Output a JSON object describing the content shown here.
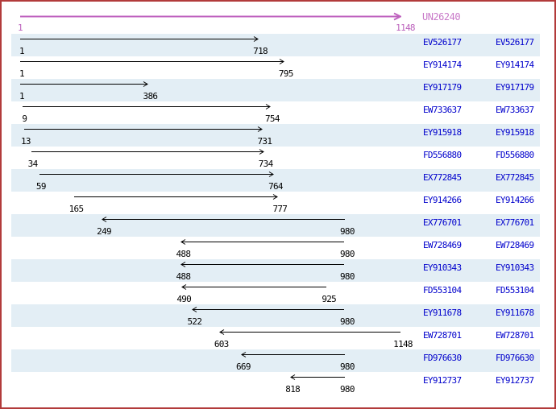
{
  "chart_data": {
    "type": "alignment-track",
    "title": "UN26240",
    "axis": {
      "min": 1,
      "max": 1148,
      "grid": false
    },
    "reference": {
      "id": "UN26240",
      "start": 1,
      "end": 1148,
      "start_label": "1",
      "end_label": "1148",
      "direction": "right"
    },
    "alignments": [
      {
        "id": "EV526177",
        "start": 1,
        "end": 718,
        "start_label": "1",
        "end_label": "718",
        "direction": "right"
      },
      {
        "id": "EY914174",
        "start": 1,
        "end": 795,
        "start_label": "1",
        "end_label": "795",
        "direction": "right"
      },
      {
        "id": "EY917179",
        "start": 1,
        "end": 386,
        "start_label": "1",
        "end_label": "386",
        "direction": "right"
      },
      {
        "id": "EW733637",
        "start": 9,
        "end": 754,
        "start_label": "9",
        "end_label": "754",
        "direction": "right"
      },
      {
        "id": "EY915918",
        "start": 13,
        "end": 731,
        "start_label": "13",
        "end_label": "731",
        "direction": "right"
      },
      {
        "id": "FD556880",
        "start": 34,
        "end": 734,
        "start_label": "34",
        "end_label": "734",
        "direction": "right"
      },
      {
        "id": "EX772845",
        "start": 59,
        "end": 764,
        "start_label": "59",
        "end_label": "764",
        "direction": "right"
      },
      {
        "id": "EY914266",
        "start": 165,
        "end": 777,
        "start_label": "165",
        "end_label": "777",
        "direction": "right"
      },
      {
        "id": "EX776701",
        "start": 249,
        "end": 980,
        "start_label": "249",
        "end_label": "980",
        "direction": "left"
      },
      {
        "id": "EW728469",
        "start": 488,
        "end": 980,
        "start_label": "488",
        "end_label": "980",
        "direction": "left"
      },
      {
        "id": "EY910343",
        "start": 488,
        "end": 980,
        "start_label": "488",
        "end_label": "980",
        "direction": "left"
      },
      {
        "id": "FD553104",
        "start": 490,
        "end": 925,
        "start_label": "490",
        "end_label": "925",
        "direction": "left"
      },
      {
        "id": "EY911678",
        "start": 522,
        "end": 980,
        "start_label": "522",
        "end_label": "980",
        "direction": "left"
      },
      {
        "id": "EW728701",
        "start": 603,
        "end": 1148,
        "start_label": "603",
        "end_label": "1148",
        "direction": "left"
      },
      {
        "id": "FD976630",
        "start": 669,
        "end": 980,
        "start_label": "669",
        "end_label": "980",
        "direction": "left"
      },
      {
        "id": "EY912737",
        "start": 818,
        "end": 980,
        "start_label": "818",
        "end_label": "980",
        "direction": "left"
      }
    ],
    "legend_position": "none"
  },
  "colors": {
    "reference_arrow": "#bf63bf",
    "reference_text": "#c878c8",
    "alignment_arrow": "#000000",
    "accession_link": "#0000cc",
    "row_alt_background": "#e3eef5",
    "page_border": "#b23b3b"
  }
}
